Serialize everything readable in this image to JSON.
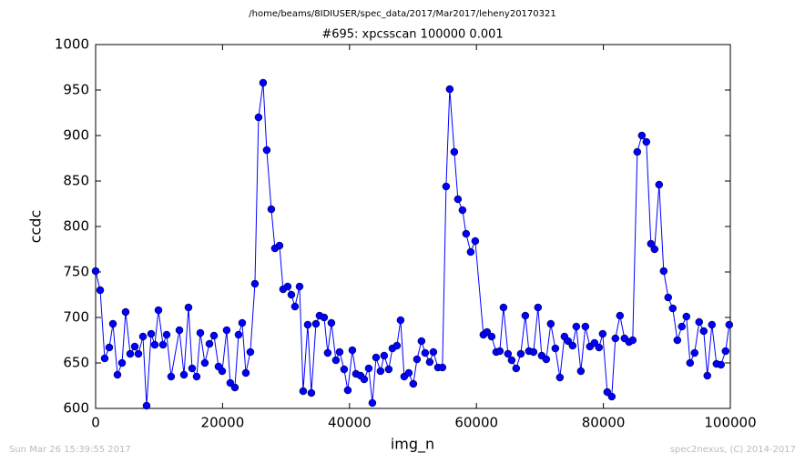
{
  "chart_data": {
    "type": "line",
    "figure_title": "/home/beams/8IDIUSER/spec_data/2017/Mar2017/leheny20170321",
    "title": "#695: xpcsscan 100000 0.001",
    "xlabel": "img_n",
    "ylabel": "ccdc",
    "footer_left": "Sun Mar 26 15:39:55 2017",
    "footer_right": "spec2nexus, (C) 2014-2017",
    "color": "#0000ff",
    "xlim": [
      0,
      100000
    ],
    "ylim": [
      600,
      1000
    ],
    "xticks": [
      0,
      20000,
      40000,
      60000,
      80000,
      100000
    ],
    "yticks": [
      600,
      650,
      700,
      750,
      800,
      850,
      900,
      950,
      1000
    ],
    "x": [
      0,
      720,
      1430,
      2150,
      2730,
      3440,
      4160,
      4730,
      5450,
      6170,
      6740,
      7460,
      8030,
      8750,
      9320,
      9900,
      10610,
      11190,
      11900,
      13200,
      13920,
      14630,
      15200,
      15920,
      16500,
      17210,
      17930,
      18650,
      19360,
      19940,
      20650,
      21220,
      21940,
      22520,
      23090,
      23670,
      24380,
      25100,
      25670,
      26390,
      26960,
      27680,
      28250,
      28970,
      29540,
      30260,
      30840,
      31410,
      32130,
      32700,
      33420,
      33990,
      34710,
      35280,
      36000,
      36570,
      37150,
      37860,
      38440,
      39150,
      39730,
      40450,
      41020,
      41740,
      42310,
      43030,
      43600,
      44180,
      44890,
      45460,
      46180,
      46760,
      47470,
      48050,
      48620,
      49340,
      50050,
      50630,
      51340,
      51920,
      52640,
      53210,
      53930,
      54640,
      55220,
      55790,
      56510,
      57080,
      57800,
      58370,
      59090,
      59810,
      61100,
      61670,
      62390,
      63110,
      63680,
      64260,
      64970,
      65550,
      66260,
      66980,
      67700,
      68270,
      68990,
      69700,
      70280,
      71000,
      71710,
      72430,
      73150,
      73870,
      74440,
      75150,
      75730,
      76450,
      77160,
      77880,
      78600,
      79310,
      79890,
      80610,
      81320,
      81890,
      82610,
      83330,
      84050,
      84620,
      85340,
      86060,
      86770,
      87490,
      88060,
      88780,
      89500,
      90210,
      90930,
      91650,
      92360,
      93080,
      93660,
      94370,
      95090,
      95810,
      96380,
      97100,
      97820,
      98530,
      99250,
      99830
    ],
    "values": [
      751,
      730,
      655,
      667,
      693,
      637,
      650,
      706,
      660,
      668,
      660,
      679,
      603,
      682,
      670,
      708,
      670,
      681,
      635,
      686,
      637,
      711,
      644,
      635,
      683,
      650,
      671,
      680,
      646,
      641,
      686,
      628,
      623,
      681,
      694,
      639,
      662,
      737,
      920,
      958,
      884,
      819,
      776,
      779,
      731,
      734,
      725,
      712,
      734,
      619,
      692,
      617,
      693,
      702,
      700,
      661,
      694,
      653,
      662,
      643,
      620,
      664,
      638,
      636,
      632,
      644,
      606,
      656,
      641,
      658,
      643,
      666,
      669,
      697,
      635,
      639,
      627,
      654,
      674,
      661,
      651,
      662,
      645,
      645,
      844,
      951,
      882,
      830,
      818,
      792,
      772,
      784,
      681,
      684,
      679,
      662,
      663,
      711,
      660,
      653,
      644,
      660,
      702,
      663,
      662,
      711,
      658,
      654,
      693,
      666,
      634,
      679,
      674,
      669,
      690,
      641,
      690,
      668,
      672,
      667,
      682,
      618,
      613,
      677,
      702,
      677,
      673,
      675,
      882,
      900,
      893,
      781,
      775,
      846,
      751,
      722,
      710,
      675,
      690,
      701,
      650,
      661,
      695,
      685,
      636,
      692,
      649,
      648,
      663,
      692
    ]
  }
}
